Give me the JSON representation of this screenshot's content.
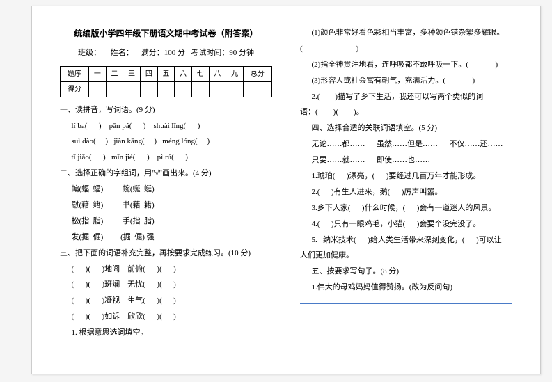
{
  "header": {
    "title": "统编版小学四年级下册语文期中考试卷（附答案）",
    "class_label": "班级：",
    "name_label": "姓名：",
    "total_label": "满分：100 分",
    "time_label": "考试时间：90 分钟"
  },
  "score_table": {
    "row1": [
      "题序",
      "一",
      "二",
      "三",
      "四",
      "五",
      "六",
      "七",
      "八",
      "九",
      "总分"
    ],
    "row2_label": "得分"
  },
  "left": {
    "q1_title": "一、读拼音，写词语。(9 分)",
    "pinyin_r1": [
      "lí  ba(",
      ")",
      "pān  pá(",
      ")",
      "shuài  lǐng(",
      ")"
    ],
    "pinyin_r2": [
      "suì  dào(",
      ")",
      "jiàn  kāng(",
      ")",
      "méng  lóng(",
      ")"
    ],
    "pinyin_r3": [
      "tǐ  jiǎo(",
      ")",
      "mǐn  jié(",
      ")",
      "pì  rú(",
      ")"
    ],
    "q2_title": "二、选择正确的字组词，用\"√\"画出来。(4 分)",
    "q2_lines": [
      "蝙(蝠  蝠)          蜿(蜒  蜓)",
      "慰(藉  籍)          书(藉  籍)",
      "松(指  脂)          手(指  脂)",
      "发(掘  倔)         (掘  倔) 强"
    ],
    "q3_title": "三、把下面的词语补充完整，再按要求完成练习。(10 分)",
    "q3_lines": [
      "(      )(      )地闾    前俯(      )(      )",
      "(      )(      )斑斓    无忧(      )(      )",
      "(      )(      )凝视    生气(      )(      )",
      "(      )(      )如诉    欣欣(      )(      )"
    ],
    "q3_sub1": "1. 根据意思选词填空。"
  },
  "right": {
    "r1": "(1)颜色非常好看色彩相当丰富，多种颜色错杂繁多耀眼。",
    "r1_blank": "(                            )",
    "r2": "(2)指全神贯注地看，连呼吸都不敢呼吸一下。(              )",
    "r3": "(3)形容人或社会富有朝气，充满活力。(              )",
    "r4": "2.(        )描写了乡下生活，我还可以写两个类似的词",
    "r4b": "语：(        )(        )。",
    "q4_title": "四、选择合适的关联词语填空。(5 分)",
    "q4_opts1": "无论……都……      虽然……但是……      不仅……还……",
    "q4_opts2": "只要……就……      即使……也……",
    "q4_1": "1.琥珀(      )漂亮，(      )要经过几百万年才能形成。",
    "q4_2": "2.(      )有生人进来，鹅(      )厉声叫嚣。",
    "q4_3": "3.乡下人家(      )什么时候，(      )会有一道迷人的风景。",
    "q4_4": "4.(      )只有一眼鸡毛，小猫(      )会要个没完没了。",
    "q4_5": "5.   纳米技术(      )给人类生活带来深刻变化，(      )可以让",
    "q4_5b": "人们更加健康。",
    "q5_title": "五、按要求写句子。(8 分)",
    "q5_1": "1.伟大的母鸡妈妈值得赞扬。(改为反问句)"
  }
}
